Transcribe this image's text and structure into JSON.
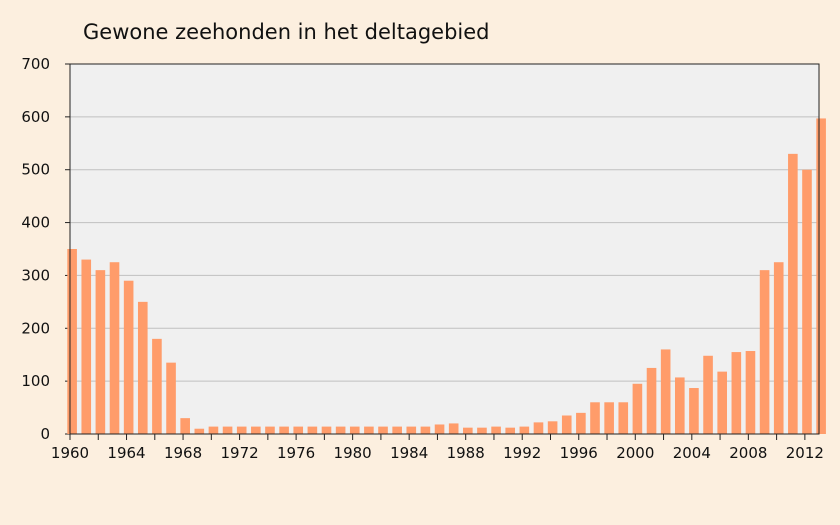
{
  "chart_data": {
    "type": "bar",
    "title": "Gewone zeehonden in het deltagebied",
    "xlabel": "",
    "ylabel": "",
    "ylim": [
      0,
      700
    ],
    "yticks": [
      0,
      100,
      200,
      300,
      400,
      500,
      600,
      700
    ],
    "xtick_labels": [
      "1960",
      "1964",
      "1968",
      "1972",
      "1976",
      "1980",
      "1984",
      "1988",
      "1992",
      "1996",
      "2000",
      "2004",
      "2008",
      "2012"
    ],
    "grid": true,
    "legend": "none",
    "colors": {
      "bar": "#ff9c6a",
      "plot_background": "#f0f0f0",
      "page_background": "#fcefdf",
      "grid": "#c0c0c0",
      "axis": "#222222"
    },
    "categories": [
      "1960",
      "1961",
      "1962",
      "1963",
      "1964",
      "1965",
      "1966",
      "1967",
      "1968",
      "1969",
      "1970",
      "1971",
      "1972",
      "1973",
      "1974",
      "1975",
      "1976",
      "1977",
      "1978",
      "1979",
      "1980",
      "1981",
      "1982",
      "1983",
      "1984",
      "1985",
      "1986",
      "1987",
      "1988",
      "1989",
      "1990",
      "1991",
      "1992",
      "1993",
      "1994",
      "1995",
      "1996",
      "1997",
      "1998",
      "1999",
      "2000",
      "2001",
      "2002",
      "2003",
      "2004",
      "2005",
      "2006",
      "2007",
      "2008",
      "2009",
      "2010",
      "2011",
      "2012",
      "2013"
    ],
    "values": [
      350,
      330,
      310,
      325,
      290,
      250,
      180,
      135,
      30,
      10,
      14,
      14,
      14,
      14,
      14,
      14,
      14,
      14,
      14,
      14,
      14,
      14,
      14,
      14,
      14,
      14,
      18,
      20,
      12,
      12,
      14,
      12,
      14,
      22,
      24,
      35,
      40,
      60,
      60,
      60,
      95,
      125,
      160,
      107,
      87,
      148,
      118,
      155,
      157,
      310,
      325,
      530,
      500,
      597
    ]
  }
}
